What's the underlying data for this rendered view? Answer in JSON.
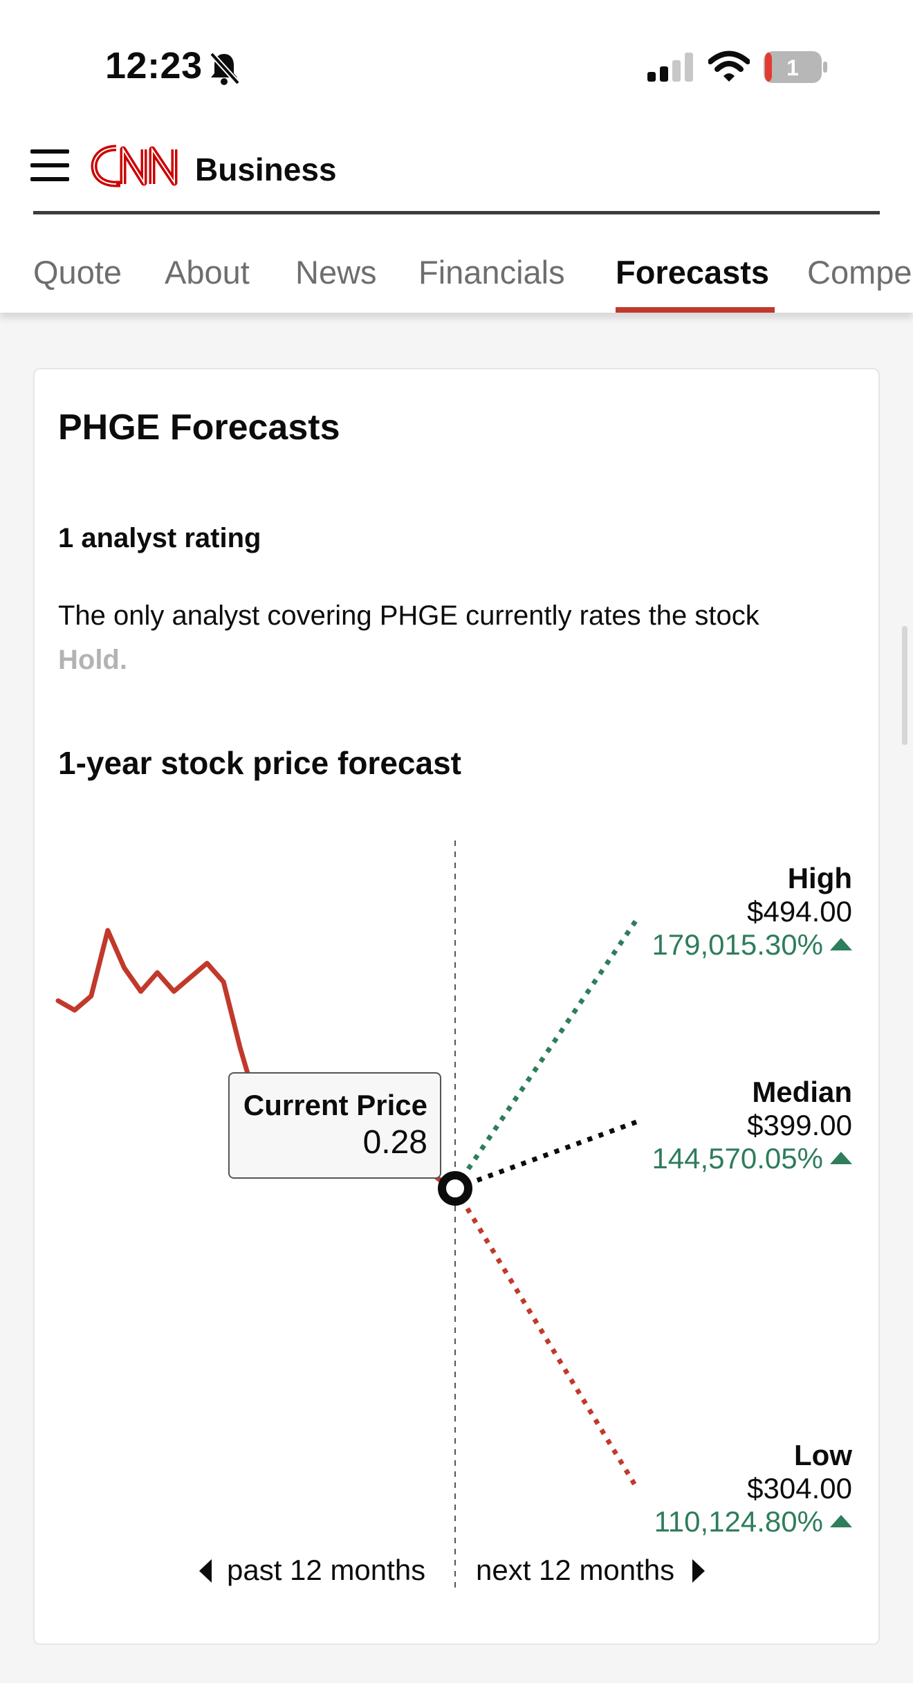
{
  "status_bar": {
    "time": "12:23",
    "battery": "1"
  },
  "header": {
    "brand": "Business"
  },
  "tabs": [
    {
      "label": "Quote"
    },
    {
      "label": "About"
    },
    {
      "label": "News"
    },
    {
      "label": "Financials"
    },
    {
      "label": "Forecasts",
      "active": true
    },
    {
      "label": "Compe"
    }
  ],
  "card": {
    "title": "PHGE Forecasts",
    "rating_title": "1 analyst rating",
    "rating_text": "The only analyst covering PHGE currently rates the stock",
    "rating_value": "Hold.",
    "forecast_title": "1-year stock price forecast"
  },
  "colors": {
    "accent": "#c0392b",
    "positive": "#2e7d5b",
    "text": "#0c0c0c"
  },
  "chart_data": {
    "type": "line",
    "current": {
      "label": "Current Price",
      "value": "0.28",
      "raw": 0.28
    },
    "history": [
      0.4,
      0.38,
      0.41,
      0.55,
      0.47,
      0.42,
      0.46,
      0.42,
      0.45,
      0.48,
      0.44,
      0.3,
      0.18,
      0.12,
      0.08,
      0.07,
      0.12,
      0.08,
      0.14,
      0.1,
      0.14,
      0.1,
      0.05,
      0.02,
      0.0
    ],
    "forecasts": [
      {
        "name": "High",
        "price": "$494.00",
        "change": "179,015.30%",
        "value": 494.0,
        "color": "#2e7d5b"
      },
      {
        "name": "Median",
        "price": "$399.00",
        "change": "144,570.05%",
        "value": 399.0,
        "color": "#0c0c0c"
      },
      {
        "name": "Low",
        "price": "$304.00",
        "change": "110,124.80%",
        "value": 304.0,
        "color": "#c0392b"
      }
    ],
    "past_label": "past 12 months",
    "next_label": "next 12 months"
  }
}
